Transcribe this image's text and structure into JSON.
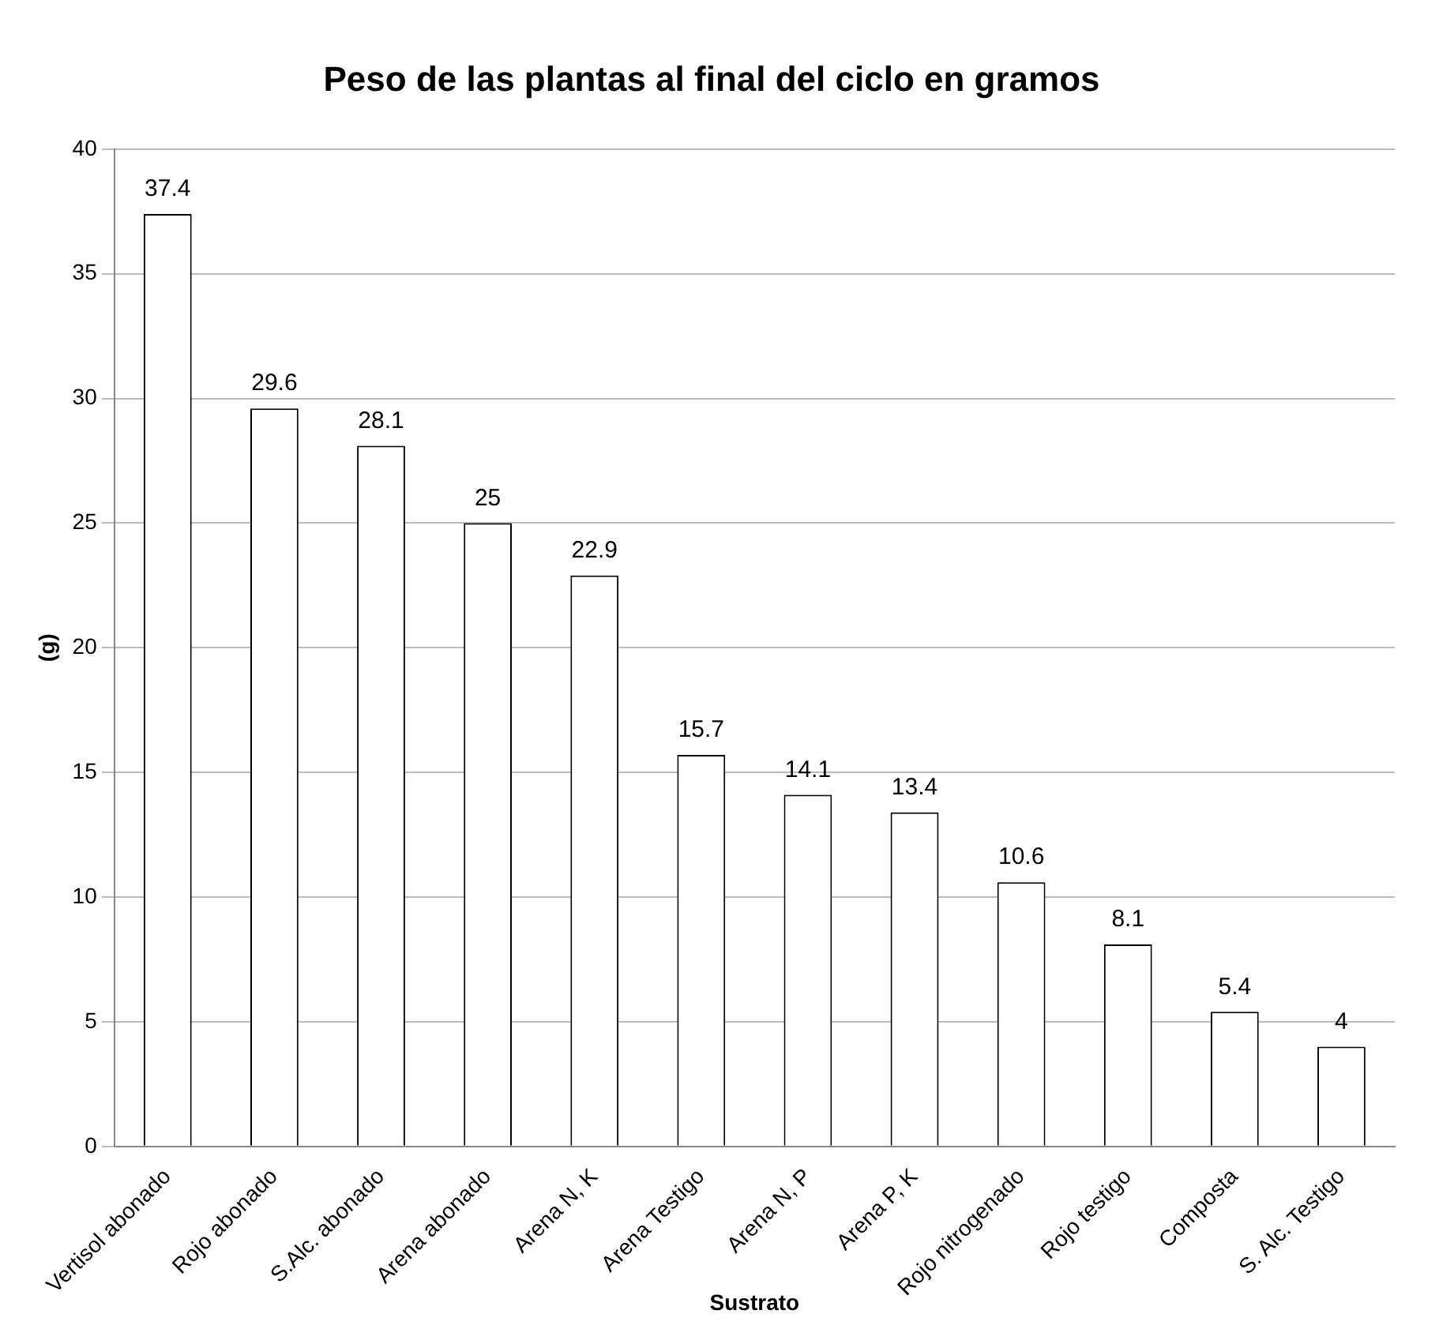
{
  "chart_data": {
    "type": "bar",
    "title": "Peso de las plantas al final del ciclo en gramos",
    "xlabel": "Sustrato",
    "ylabel": "(g)",
    "categories": [
      "Vertisol abonado",
      "Rojo abonado",
      "S.Alc. abonado",
      "Arena abonado",
      "Arena N, K",
      "Arena Testigo",
      "Arena N, P",
      "Arena P, K",
      "Rojo nitrogenado",
      "Rojo testigo",
      "Composta",
      "S. Alc. Testigo"
    ],
    "values": [
      37.4,
      29.6,
      28.1,
      25,
      22.9,
      15.7,
      14.1,
      13.4,
      10.6,
      8.1,
      5.4,
      4
    ],
    "color": "#ffffff",
    "ylim": [
      0,
      40
    ],
    "yticks": [
      0,
      5,
      10,
      15,
      20,
      25,
      30,
      35,
      40
    ],
    "grid": "y",
    "data_labels": true
  }
}
